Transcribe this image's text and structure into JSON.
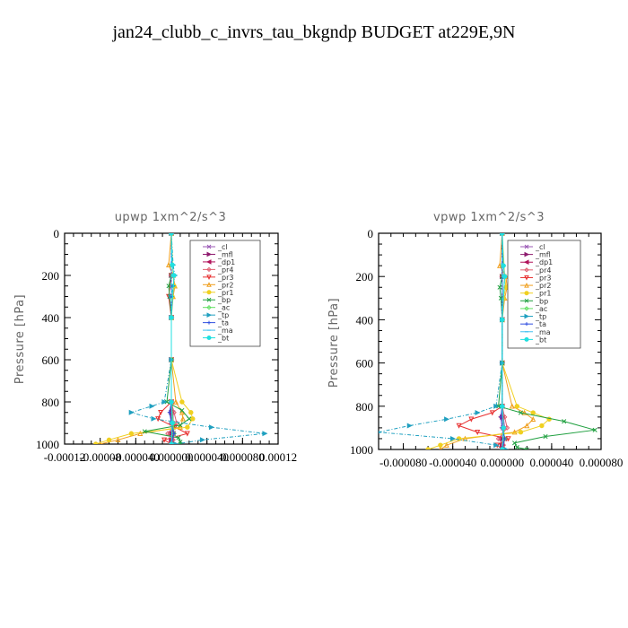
{
  "page": {
    "title": "jan24_clubb_c_invrs_tau_bkgndp  BUDGET at229E,9N"
  },
  "legend_entries": [
    {
      "label": "_cl",
      "color": "#9b59b6",
      "marker": "x"
    },
    {
      "label": "_mfl",
      "color": "#8e1a6e",
      "marker": "tri-right"
    },
    {
      "label": "_dp1",
      "color": "#b0125a",
      "marker": "tri-left"
    },
    {
      "label": "_pr4",
      "color": "#e06070",
      "marker": "diamond"
    },
    {
      "label": "_pr3",
      "color": "#e83030",
      "marker": "tri-down"
    },
    {
      "label": "_pr2",
      "color": "#f0a020",
      "marker": "tri-up"
    },
    {
      "label": "_pr1",
      "color": "#f0d020",
      "marker": "circle"
    },
    {
      "label": "_bp",
      "color": "#20a040",
      "marker": "x"
    },
    {
      "label": "_ac",
      "color": "#60e060",
      "marker": "diamond"
    },
    {
      "label": "_tp",
      "color": "#20a0c0",
      "marker": "tri-right"
    },
    {
      "label": "_ta",
      "color": "#3050e0",
      "marker": "plus"
    },
    {
      "label": "_ma",
      "color": "#40c0f0",
      "marker": "dash"
    },
    {
      "label": "_bt",
      "color": "#20e0e0",
      "marker": "circle"
    }
  ],
  "chart_data": [
    {
      "type": "line",
      "title": "upwp   1xm^2/s^3",
      "ylabel": "Pressure [hPa]",
      "xlim": [
        -0.00012,
        0.00012
      ],
      "ylim": [
        1000,
        0
      ],
      "xticks": [
        -0.00012,
        -8e-05,
        -4e-05,
        0.0,
        4e-05,
        8e-05,
        0.00012
      ],
      "xtick_labels": [
        "-0.00012",
        "-0.00008",
        "-0.000040",
        "0.000000",
        "0.000040",
        "0.000080",
        "0.00012"
      ],
      "yticks": [
        0,
        200,
        400,
        600,
        800,
        1000
      ],
      "ytick_labels": [
        "0",
        "200",
        "400",
        "600",
        "800",
        "1000"
      ],
      "legend_position": "top-right",
      "series": [
        {
          "name": "_cl",
          "y": [
            0,
            200,
            400,
            600,
            800,
            850,
            900,
            950,
            980,
            1000
          ],
          "x": [
            0,
            0,
            0,
            0,
            0,
            2e-06,
            2e-06,
            -2e-06,
            0,
            0
          ]
        },
        {
          "name": "_mfl",
          "y": [
            0,
            200,
            400,
            600,
            800,
            850,
            900,
            950,
            980,
            1000
          ],
          "x": [
            0,
            0,
            0,
            0,
            0,
            0,
            1e-06,
            0,
            0,
            0
          ]
        },
        {
          "name": "_dp1",
          "y": [
            0,
            200,
            400,
            600,
            800,
            850,
            900,
            950,
            980,
            1000
          ],
          "x": [
            0,
            0,
            0,
            0,
            0,
            -1e-06,
            0,
            2e-06,
            0,
            0
          ]
        },
        {
          "name": "_pr4",
          "y": [
            0,
            200,
            400,
            600,
            800,
            850,
            900,
            950,
            980,
            1000
          ],
          "x": [
            0,
            0,
            0,
            0,
            0,
            3e-06,
            6e-06,
            -4e-06,
            2e-06,
            0
          ]
        },
        {
          "name": "_pr3",
          "y": [
            0,
            200,
            300,
            400,
            600,
            800,
            850,
            880,
            920,
            950,
            980,
            1000
          ],
          "x": [
            0,
            0,
            -3e-06,
            0,
            0,
            0,
            -1.2e-05,
            -1.5e-05,
            4e-06,
            1.8e-05,
            -8e-06,
            0
          ]
        },
        {
          "name": "_pr2",
          "y": [
            0,
            150,
            200,
            250,
            300,
            400,
            600,
            800,
            850,
            880,
            920,
            950,
            980,
            1000
          ],
          "x": [
            0,
            -3e-06,
            2e-06,
            4e-06,
            2e-06,
            0,
            0,
            5e-06,
            1.2e-05,
            1.3e-05,
            1e-05,
            -3.5e-05,
            -6e-05,
            -8e-05
          ]
        },
        {
          "name": "_pr1",
          "y": [
            0,
            200,
            250,
            300,
            400,
            600,
            800,
            850,
            880,
            920,
            950,
            980,
            1000
          ],
          "x": [
            0,
            2e-06,
            3e-06,
            1e-06,
            0,
            0,
            1.2e-05,
            2.2e-05,
            2.4e-05,
            1.8e-05,
            -4.5e-05,
            -7e-05,
            -8.5e-05
          ]
        },
        {
          "name": "_bp",
          "y": [
            0,
            200,
            250,
            300,
            400,
            600,
            800,
            840,
            880,
            910,
            940,
            970,
            990,
            1000
          ],
          "x": [
            0,
            0,
            -3e-06,
            -2e-06,
            0,
            0,
            -5e-06,
            1.2e-05,
            2e-05,
            1e-05,
            -3e-05,
            8e-06,
            1e-05,
            1e-05
          ]
        },
        {
          "name": "_ac",
          "y": [
            0,
            400,
            800,
            900,
            950,
            1000
          ],
          "x": [
            0,
            0,
            0,
            2e-06,
            3e-06,
            0
          ]
        },
        {
          "name": "_tp",
          "y": [
            0,
            150,
            200,
            250,
            300,
            400,
            600,
            800,
            820,
            850,
            880,
            920,
            950,
            980,
            1000
          ],
          "x": [
            0,
            2e-06,
            4e-06,
            2e-06,
            0,
            0,
            0,
            -8e-06,
            -2.2e-05,
            -4.5e-05,
            -2e-05,
            4.5e-05,
            0.000105,
            3.5e-05,
            5e-06
          ]
        },
        {
          "name": "_ta",
          "y": [
            0,
            400,
            800,
            850,
            900,
            950,
            1000
          ],
          "x": [
            0,
            0,
            0,
            -2e-06,
            0,
            3e-06,
            0
          ]
        },
        {
          "name": "_ma",
          "y": [
            0,
            400,
            800,
            900,
            1000
          ],
          "x": [
            0,
            0,
            0,
            1e-06,
            0
          ]
        },
        {
          "name": "_bt",
          "y": [
            0,
            150,
            200,
            400,
            800,
            900,
            1000
          ],
          "x": [
            0,
            1e-06,
            3e-06,
            0,
            0,
            1e-06,
            0
          ]
        }
      ]
    },
    {
      "type": "line",
      "title": "vpwp   1xm^2/s^3",
      "ylabel": "Pressure [hPa]",
      "xlim": [
        -0.0001,
        8e-05
      ],
      "ylim": [
        1000,
        0
      ],
      "xticks": [
        -8e-05,
        -4e-05,
        0.0,
        4e-05,
        8e-05
      ],
      "xtick_labels": [
        "-0.000080",
        "-0.000040",
        "0.000000",
        "0.000040",
        "0.000080"
      ],
      "yticks": [
        0,
        200,
        400,
        600,
        800,
        1000
      ],
      "ytick_labels": [
        "0",
        "200",
        "400",
        "600",
        "800",
        "1000"
      ],
      "legend_position": "top-right",
      "series": [
        {
          "name": "_cl",
          "y": [
            0,
            200,
            400,
            600,
            800,
            850,
            900,
            950,
            980,
            1000
          ],
          "x": [
            0,
            0,
            0,
            0,
            0,
            1e-06,
            2e-06,
            -2e-06,
            0,
            0
          ]
        },
        {
          "name": "_mfl",
          "y": [
            0,
            200,
            400,
            600,
            800,
            850,
            900,
            950,
            980,
            1000
          ],
          "x": [
            0,
            0,
            0,
            0,
            0,
            0,
            1e-06,
            0,
            0,
            0
          ]
        },
        {
          "name": "_dp1",
          "y": [
            0,
            200,
            400,
            600,
            800,
            850,
            900,
            950,
            980,
            1000
          ],
          "x": [
            0,
            0,
            0,
            0,
            0,
            -1e-06,
            0,
            2e-06,
            0,
            0
          ]
        },
        {
          "name": "_pr4",
          "y": [
            0,
            200,
            400,
            600,
            800,
            850,
            900,
            950,
            980,
            1000
          ],
          "x": [
            0,
            0,
            0,
            0,
            0,
            2e-06,
            4e-06,
            -3e-06,
            1e-06,
            0
          ]
        },
        {
          "name": "_pr3",
          "y": [
            0,
            200,
            400,
            600,
            800,
            830,
            860,
            890,
            920,
            950,
            980,
            1000
          ],
          "x": [
            0,
            0,
            0,
            0,
            0,
            -8e-06,
            -2.5e-05,
            -3.5e-05,
            -2e-05,
            5e-06,
            -4e-06,
            0
          ]
        },
        {
          "name": "_pr2",
          "y": [
            0,
            150,
            200,
            250,
            300,
            400,
            600,
            800,
            830,
            860,
            890,
            920,
            950,
            980,
            1000
          ],
          "x": [
            0,
            -2e-06,
            3e-06,
            4e-06,
            2e-06,
            0,
            0,
            8e-06,
            1.8e-05,
            2.5e-05,
            2e-05,
            1e-05,
            -3e-05,
            -4.5e-05,
            -5e-05
          ]
        },
        {
          "name": "_pr1",
          "y": [
            0,
            200,
            250,
            300,
            400,
            600,
            800,
            830,
            860,
            890,
            920,
            950,
            980,
            1000
          ],
          "x": [
            0,
            2e-06,
            3e-06,
            1e-06,
            0,
            0,
            1.2e-05,
            2.5e-05,
            3.8e-05,
            3.2e-05,
            1.5e-05,
            -3.5e-05,
            -5e-05,
            -6e-05
          ]
        },
        {
          "name": "_bp",
          "y": [
            0,
            200,
            250,
            300,
            400,
            600,
            800,
            830,
            870,
            910,
            940,
            970,
            990,
            1000
          ],
          "x": [
            0,
            0,
            -2e-06,
            -1e-06,
            0,
            0,
            -3e-06,
            1.5e-05,
            5e-05,
            7.5e-05,
            3.5e-05,
            1e-05,
            1.2e-05,
            2e-05
          ]
        },
        {
          "name": "_ac",
          "y": [
            0,
            400,
            800,
            900,
            950,
            1000
          ],
          "x": [
            0,
            0,
            0,
            1e-06,
            2e-06,
            0
          ]
        },
        {
          "name": "_tp",
          "y": [
            0,
            150,
            200,
            400,
            600,
            800,
            830,
            860,
            890,
            920,
            950,
            980,
            1000
          ],
          "x": [
            0,
            1e-06,
            2e-06,
            0,
            0,
            -5e-06,
            -2e-05,
            -4.5e-05,
            -7.5e-05,
            -0.0001,
            -4e-05,
            -5e-06,
            3e-06
          ]
        },
        {
          "name": "_ta",
          "y": [
            0,
            400,
            800,
            850,
            900,
            950,
            1000
          ],
          "x": [
            0,
            0,
            0,
            -1e-06,
            0,
            2e-06,
            0
          ]
        },
        {
          "name": "_ma",
          "y": [
            0,
            400,
            800,
            900,
            1000
          ],
          "x": [
            0,
            0,
            0,
            1e-06,
            0
          ]
        },
        {
          "name": "_bt",
          "y": [
            0,
            150,
            200,
            400,
            800,
            900,
            1000
          ],
          "x": [
            0,
            1e-06,
            2e-06,
            0,
            0,
            1e-06,
            0
          ]
        }
      ]
    }
  ]
}
